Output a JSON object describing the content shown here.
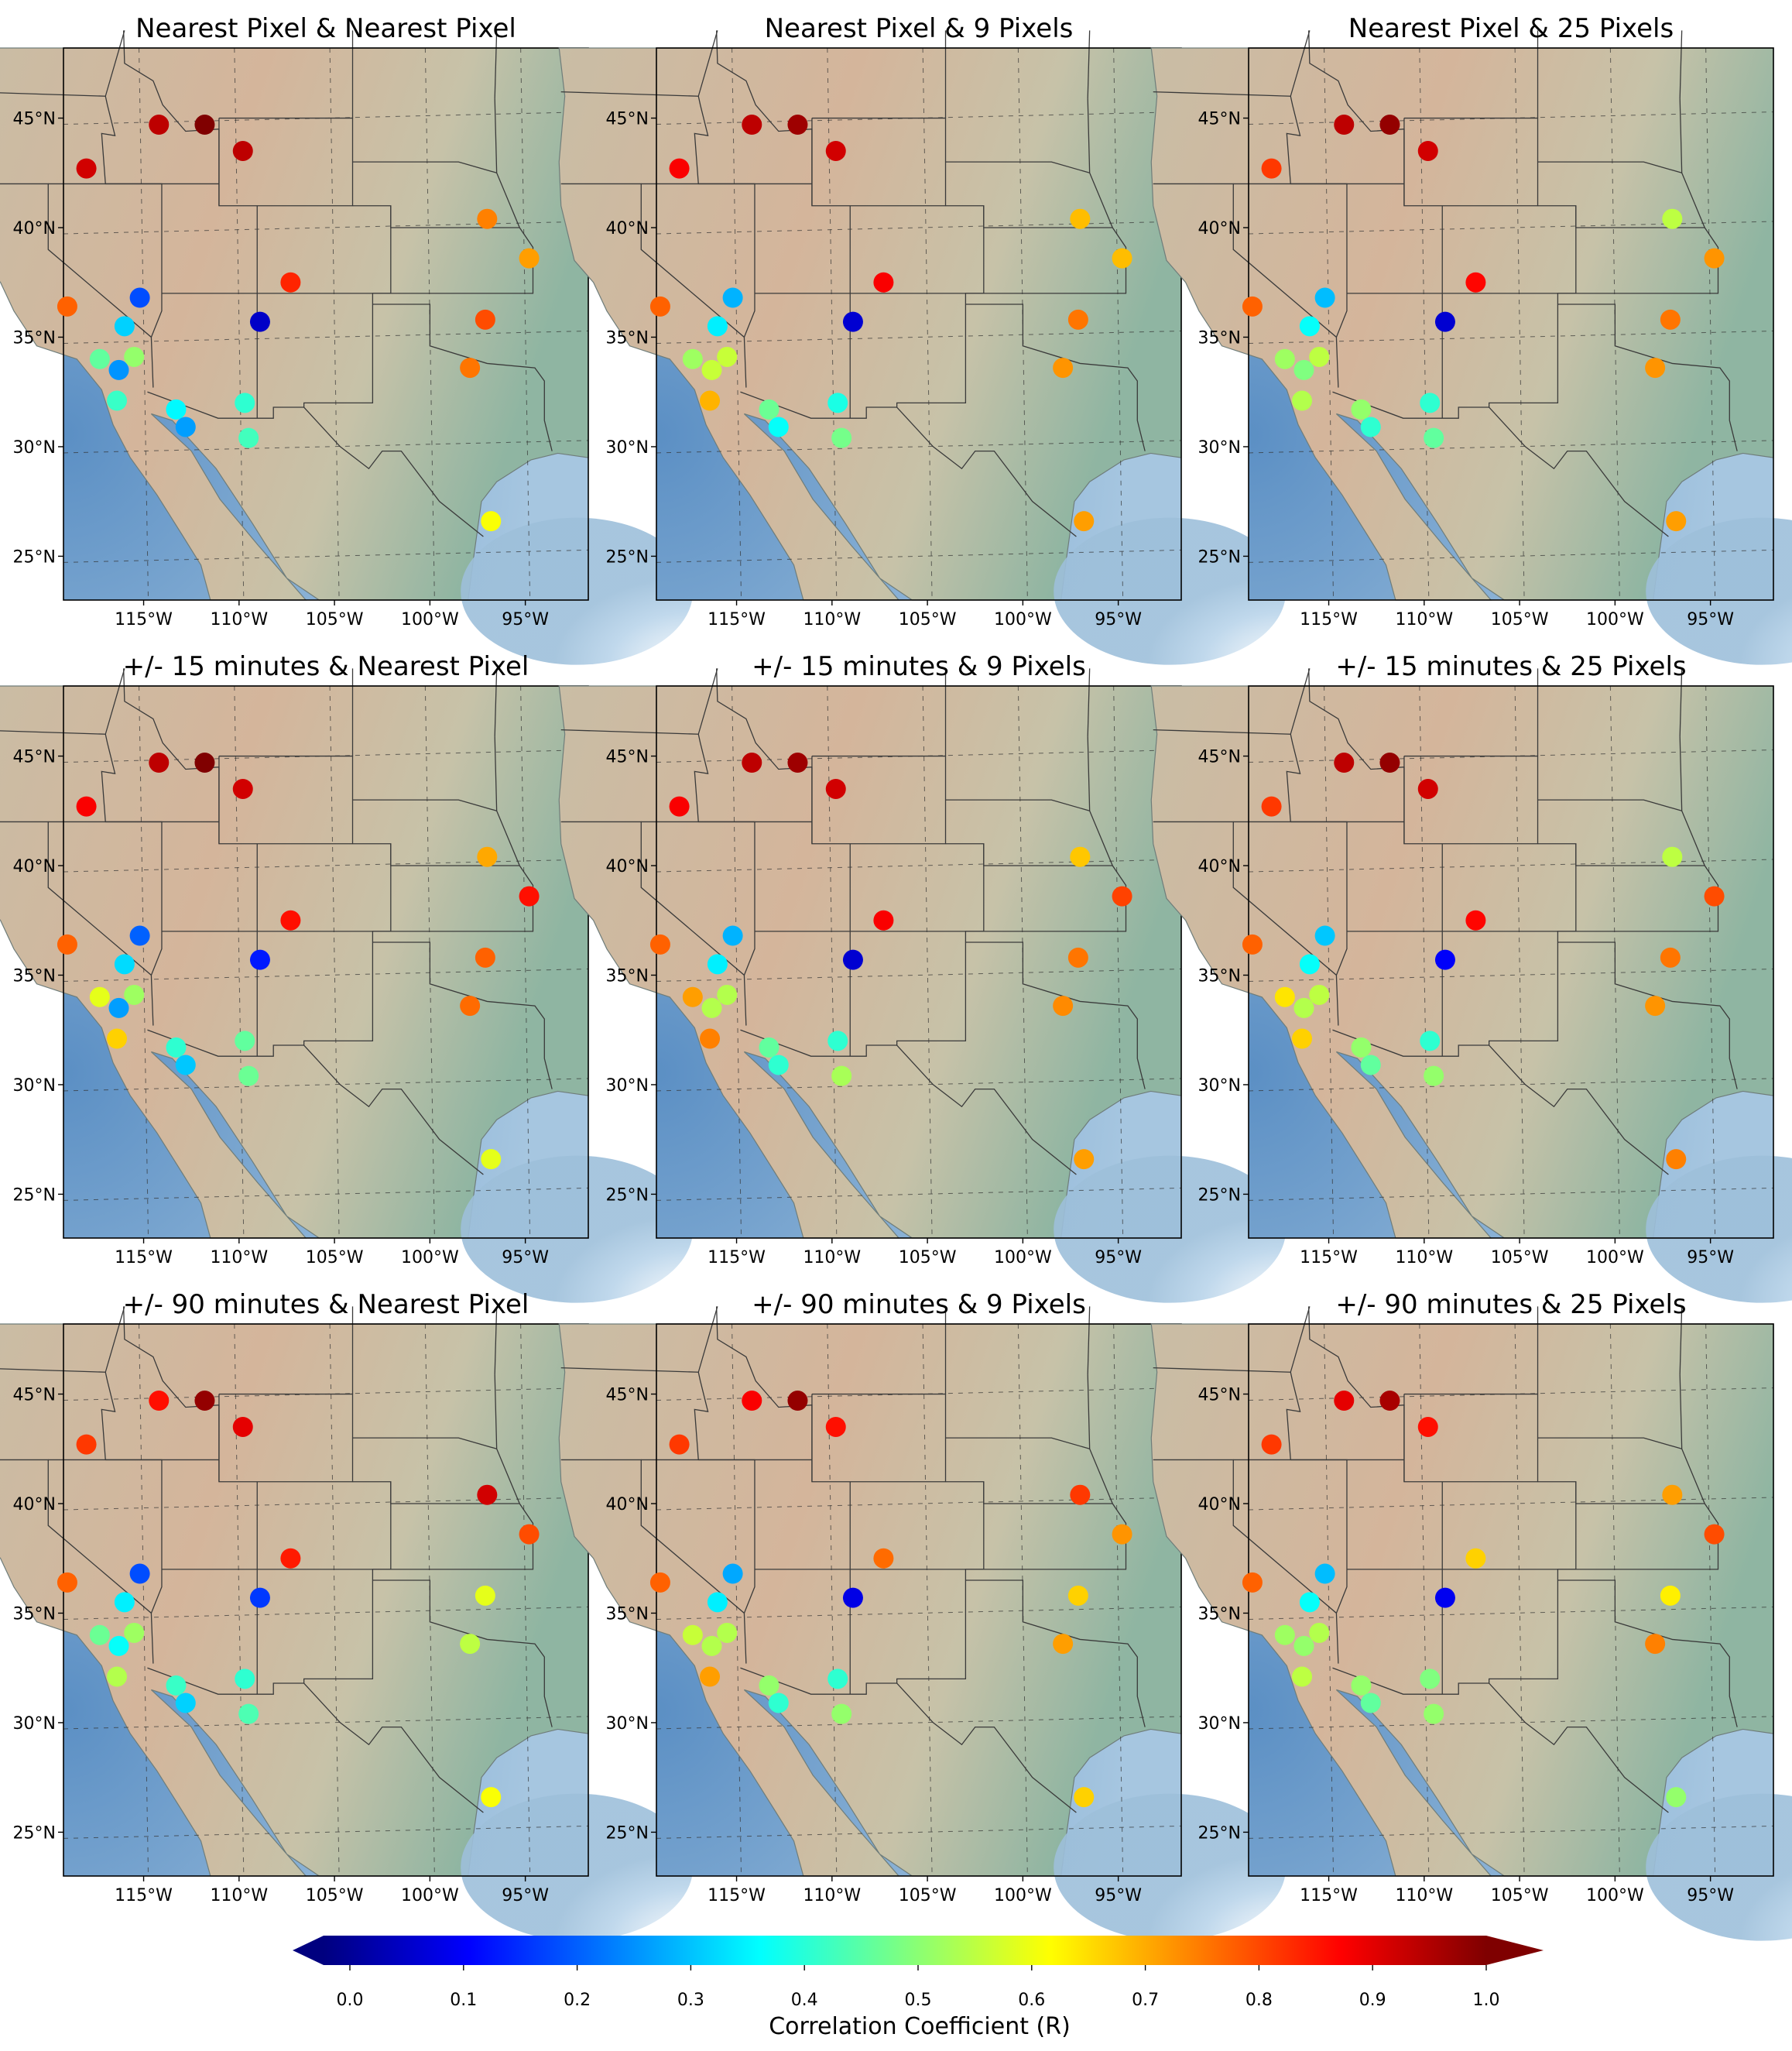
{
  "figure": {
    "colorbar": {
      "label": "Correlation Coefficient (R)",
      "ticks": [
        "0.0",
        "0.1",
        "0.2",
        "0.3",
        "0.4",
        "0.5",
        "0.6",
        "0.7",
        "0.8",
        "0.9",
        "1.0"
      ],
      "range": [
        0.0,
        1.0
      ],
      "colormap": "jet",
      "extend": "both"
    },
    "lon_ticks": [
      "115°W",
      "110°W",
      "105°W",
      "100°W",
      "95°W"
    ],
    "lat_ticks": [
      "45°N",
      "40°N",
      "35°N",
      "30°N",
      "25°N"
    ],
    "extent": {
      "lon": [
        -119.2,
        -91.7
      ],
      "lat": [
        23.0,
        48.2
      ]
    }
  },
  "chart_data": {
    "type": "scatter",
    "map_base": "shaded relief, western United States",
    "stations": [
      {
        "lon": -118.0,
        "lat": 42.7
      },
      {
        "lon": -114.2,
        "lat": 44.7
      },
      {
        "lon": -111.8,
        "lat": 44.7
      },
      {
        "lon": -109.8,
        "lat": 43.5
      },
      {
        "lon": -119.0,
        "lat": 36.4
      },
      {
        "lon": -115.2,
        "lat": 36.8
      },
      {
        "lon": -108.9,
        "lat": 35.7
      },
      {
        "lon": -116.0,
        "lat": 35.5
      },
      {
        "lon": -107.3,
        "lat": 37.5
      },
      {
        "lon": -117.3,
        "lat": 34.0
      },
      {
        "lon": -116.3,
        "lat": 33.5
      },
      {
        "lon": -115.5,
        "lat": 34.1
      },
      {
        "lon": -116.4,
        "lat": 32.1
      },
      {
        "lon": -113.3,
        "lat": 31.7
      },
      {
        "lon": -112.8,
        "lat": 30.9
      },
      {
        "lon": -109.7,
        "lat": 32.0
      },
      {
        "lon": -109.5,
        "lat": 30.4
      },
      {
        "lon": -97.0,
        "lat": 40.4
      },
      {
        "lon": -94.8,
        "lat": 38.6
      },
      {
        "lon": -97.1,
        "lat": 35.8
      },
      {
        "lon": -97.9,
        "lat": 33.6
      },
      {
        "lon": -96.8,
        "lat": 26.6
      }
    ],
    "panels": [
      {
        "title": "Nearest Pixel & Nearest Pixel",
        "r": [
          0.92,
          0.94,
          1.0,
          0.94,
          0.78,
          0.2,
          0.07,
          0.33,
          0.84,
          0.47,
          0.27,
          0.52,
          0.43,
          0.37,
          0.28,
          0.42,
          0.44,
          0.75,
          0.72,
          0.8,
          0.76,
          0.62
        ]
      },
      {
        "title": "Nearest Pixel & 9 Pixels",
        "r": [
          0.88,
          0.94,
          0.97,
          0.92,
          0.78,
          0.3,
          0.08,
          0.36,
          0.88,
          0.53,
          0.57,
          0.57,
          0.7,
          0.48,
          0.38,
          0.4,
          0.49,
          0.69,
          0.69,
          0.76,
          0.73,
          0.72
        ]
      },
      {
        "title": "Nearest Pixel & 25 Pixels",
        "r": [
          0.82,
          0.94,
          0.98,
          0.92,
          0.78,
          0.31,
          0.08,
          0.38,
          0.87,
          0.53,
          0.5,
          0.56,
          0.55,
          0.52,
          0.42,
          0.42,
          0.47,
          0.56,
          0.73,
          0.76,
          0.73,
          0.72
        ]
      },
      {
        "title": "+/- 15 minutes & Nearest Pixel",
        "r": [
          0.88,
          0.94,
          1.0,
          0.92,
          0.78,
          0.22,
          0.15,
          0.34,
          0.86,
          0.6,
          0.28,
          0.53,
          0.67,
          0.42,
          0.32,
          0.47,
          0.48,
          0.71,
          0.86,
          0.78,
          0.77,
          0.6
        ]
      },
      {
        "title": "+/- 15 minutes & 9 Pixels",
        "r": [
          0.88,
          0.94,
          0.97,
          0.92,
          0.78,
          0.3,
          0.08,
          0.36,
          0.88,
          0.72,
          0.55,
          0.55,
          0.75,
          0.47,
          0.42,
          0.42,
          0.54,
          0.68,
          0.81,
          0.76,
          0.74,
          0.72
        ]
      },
      {
        "title": "+/- 15 minutes & 25 Pixels",
        "r": [
          0.82,
          0.94,
          0.98,
          0.92,
          0.78,
          0.32,
          0.12,
          0.38,
          0.87,
          0.65,
          0.55,
          0.56,
          0.67,
          0.52,
          0.47,
          0.42,
          0.52,
          0.56,
          0.8,
          0.76,
          0.73,
          0.75
        ]
      },
      {
        "title": "+/- 90 minutes & Nearest Pixel",
        "r": [
          0.82,
          0.86,
          0.98,
          0.9,
          0.78,
          0.2,
          0.18,
          0.36,
          0.85,
          0.48,
          0.38,
          0.53,
          0.55,
          0.43,
          0.33,
          0.42,
          0.45,
          0.92,
          0.8,
          0.6,
          0.56,
          0.62
        ]
      },
      {
        "title": "+/- 90 minutes & 9 Pixels",
        "r": [
          0.82,
          0.88,
          0.98,
          0.86,
          0.78,
          0.29,
          0.1,
          0.36,
          0.77,
          0.57,
          0.55,
          0.55,
          0.72,
          0.52,
          0.42,
          0.42,
          0.52,
          0.82,
          0.73,
          0.67,
          0.72,
          0.67
        ]
      },
      {
        "title": "+/- 90 minutes & 25 Pixels",
        "r": [
          0.82,
          0.9,
          0.96,
          0.86,
          0.78,
          0.31,
          0.11,
          0.38,
          0.67,
          0.53,
          0.52,
          0.55,
          0.56,
          0.52,
          0.47,
          0.5,
          0.52,
          0.72,
          0.8,
          0.64,
          0.75,
          0.52
        ]
      }
    ]
  }
}
